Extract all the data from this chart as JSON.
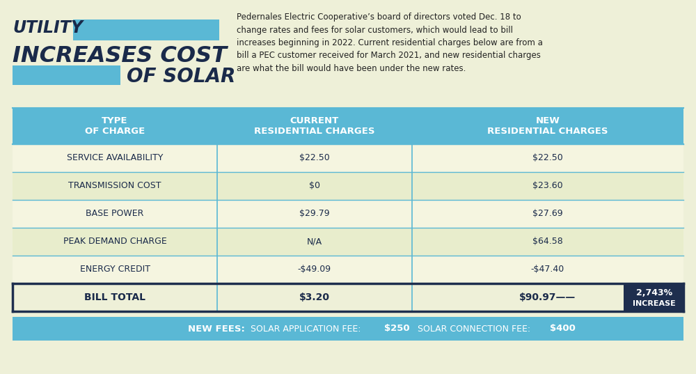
{
  "bg_color": "#eef0d8",
  "title_color": "#1a2a4a",
  "bar_color": "#5ab8d5",
  "title_line1": "UTILITY",
  "title_line2": "INCREASES COST",
  "title_line3": "OF SOLAR",
  "description": "Pedernales Electric Cooperative’s board of directors voted Dec. 18 to\nchange rates and fees for solar customers, which would lead to bill\nincreases beginning in 2022. Current residential charges below are from a\nbill a PEC customer received for March 2021, and new residential charges\nare what the bill would have been under the new rates.",
  "header_bg": "#5ab8d5",
  "header_text_color": "#ffffff",
  "col_headers": [
    "TYPE\nOF CHARGE",
    "CURRENT\nRESIDENTIAL CHARGES",
    "NEW\nRESIDENTIAL CHARGES"
  ],
  "rows": [
    [
      "SERVICE AVAILABILITY",
      "$22.50",
      "$22.50"
    ],
    [
      "TRANSMISSION COST",
      "$0",
      "$23.60"
    ],
    [
      "BASE POWER",
      "$29.79",
      "$27.69"
    ],
    [
      "PEAK DEMAND CHARGE",
      "N/A",
      "$64.58"
    ],
    [
      "ENERGY CREDIT",
      "-$49.09",
      "-$47.40"
    ],
    [
      "BILL TOTAL",
      "$3.20",
      "$90.97——"
    ]
  ],
  "row_bgs": [
    "#f5f5e0",
    "#e8edcc",
    "#f5f5e0",
    "#e8edcc",
    "#f5f5e0",
    "#eef0d8"
  ],
  "increase_box_bg": "#1e2e4e",
  "new_fees_bg": "#5ab8d5",
  "border_color": "#5ab8d5",
  "total_border_color": "#1e2e4e",
  "col_splits": [
    0.305,
    0.595
  ]
}
